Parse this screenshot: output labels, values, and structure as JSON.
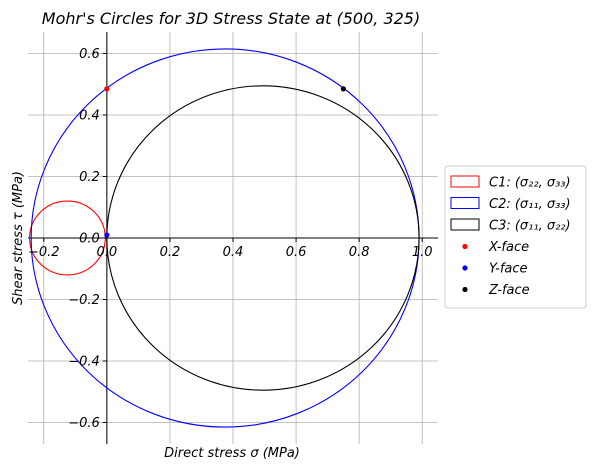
{
  "chart_data": {
    "type": "scatter",
    "title": "Mohr's Circles for 3D Stress State at (500, 325)",
    "xlabel": "Direct stress σ (MPa)",
    "ylabel": "Shear stress τ (MPa)",
    "xlim": [
      -0.25,
      1.05
    ],
    "ylim": [
      -0.67,
      0.67
    ],
    "x_ticks": [
      -0.2,
      0.0,
      0.2,
      0.4,
      0.6,
      0.8,
      1.0
    ],
    "x_tick_labels": [
      "−0.2",
      "0.0",
      "0.2",
      "0.4",
      "0.6",
      "0.8",
      "1.0"
    ],
    "y_ticks": [
      -0.6,
      -0.4,
      -0.2,
      0.0,
      0.2,
      0.4,
      0.6
    ],
    "y_tick_labels": [
      "−0.6",
      "−0.4",
      "−0.2",
      "0.0",
      "0.2",
      "0.4",
      "0.6"
    ],
    "grid": true,
    "legend_position": "center-right-outside",
    "circles": [
      {
        "name": "C1: (σ₂₂, σ₃₃)",
        "center": -0.125,
        "radius": 0.12,
        "color": "#ff0000"
      },
      {
        "name": "C2: (σ₁₁, σ₃₃)",
        "center": 0.375,
        "radius": 0.615,
        "color": "#0000ff"
      },
      {
        "name": "C3: (σ₁₁, σ₂₂)",
        "center": 0.495,
        "radius": 0.495,
        "color": "#000000"
      }
    ],
    "points": [
      {
        "name": "X-face",
        "x": 0.0,
        "y": 0.485,
        "color": "#ff0000"
      },
      {
        "name": "Y-face",
        "x": 0.0,
        "y": 0.01,
        "color": "#0000ff"
      },
      {
        "name": "Z-face",
        "x": 0.75,
        "y": 0.485,
        "color": "#000000"
      }
    ]
  }
}
